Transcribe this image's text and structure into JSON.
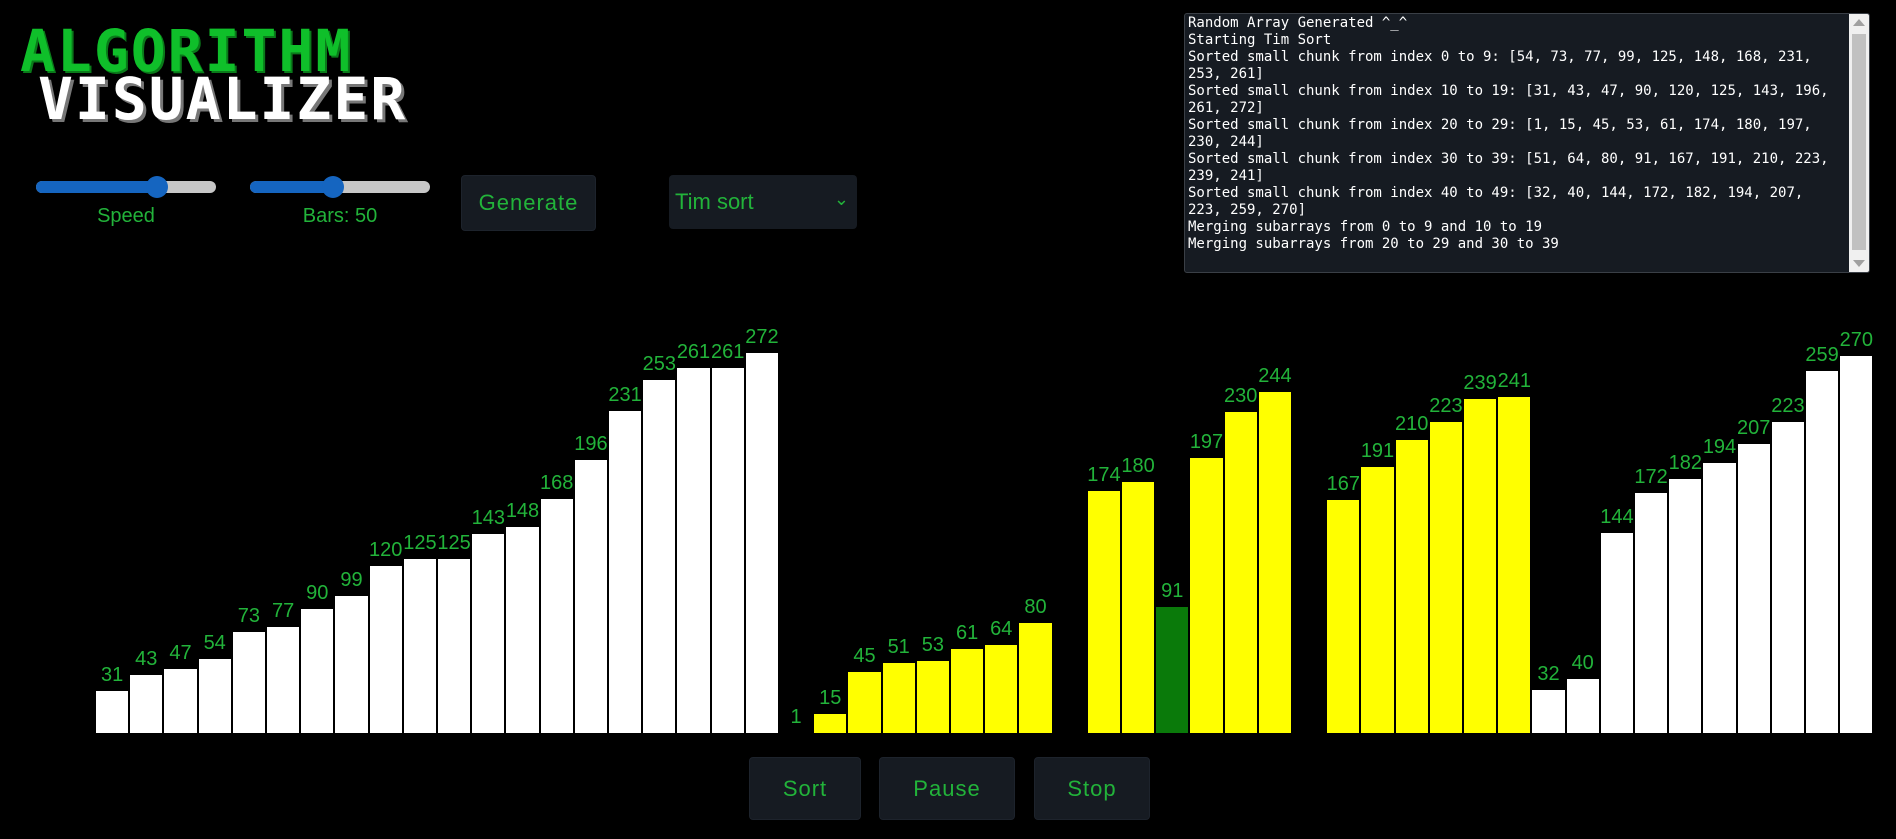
{
  "header": {
    "title_line1": "ALGORITHM",
    "title_line2": "VISUALIZER"
  },
  "controls": {
    "speed": {
      "label": "Speed",
      "value_fraction": 0.67
    },
    "bars": {
      "label": "Bars: 50",
      "value_fraction": 0.46
    },
    "generate_label": "Generate",
    "algorithm_selected": "Tim sort"
  },
  "log": {
    "lines": [
      "Random Array Generated ^_^",
      "Starting Tim Sort",
      "Sorted small chunk from index 0 to 9: [54, 73, 77, 99, 125, 148, 168, 231, 253, 261]",
      "Sorted small chunk from index 10 to 19: [31, 43, 47, 90, 120, 125, 143, 196, 261, 272]",
      "Sorted small chunk from index 20 to 29: [1, 15, 45, 53, 61, 174, 180, 197, 230, 244]",
      "Sorted small chunk from index 30 to 39: [51, 64, 80, 91, 167, 191, 210, 223, 239, 241]",
      "Sorted small chunk from index 40 to 49: [32, 40, 144, 172, 182, 194, 207, 223, 259, 270]",
      "Merging subarrays from 0 to 9 and 10 to 19",
      "Merging subarrays from 20 to 29 and 30 to 39"
    ]
  },
  "colors": {
    "default": "#ffffff",
    "active": "#ffff00",
    "highlight": "#0a7a0a",
    "label": "#22b33a"
  },
  "bars": [
    {
      "value": 31,
      "state": "default"
    },
    {
      "value": 43,
      "state": "default"
    },
    {
      "value": 47,
      "state": "default"
    },
    {
      "value": 54,
      "state": "default"
    },
    {
      "value": 73,
      "state": "default"
    },
    {
      "value": 77,
      "state": "default"
    },
    {
      "value": 90,
      "state": "default"
    },
    {
      "value": 99,
      "state": "default"
    },
    {
      "value": 120,
      "state": "default"
    },
    {
      "value": 125,
      "state": "default"
    },
    {
      "value": 125,
      "state": "default"
    },
    {
      "value": 143,
      "state": "default"
    },
    {
      "value": 148,
      "state": "default"
    },
    {
      "value": 168,
      "state": "default"
    },
    {
      "value": 196,
      "state": "default"
    },
    {
      "value": 231,
      "state": "default"
    },
    {
      "value": 253,
      "state": "default"
    },
    {
      "value": 261,
      "state": "default"
    },
    {
      "value": 261,
      "state": "default"
    },
    {
      "value": 272,
      "state": "default"
    },
    {
      "value": 1,
      "state": "active"
    },
    {
      "value": 15,
      "state": "active"
    },
    {
      "value": 45,
      "state": "active"
    },
    {
      "value": 51,
      "state": "active"
    },
    {
      "value": 53,
      "state": "active"
    },
    {
      "value": 61,
      "state": "active"
    },
    {
      "value": 64,
      "state": "active"
    },
    {
      "value": 80,
      "state": "active"
    },
    {
      "value": null,
      "state": "empty"
    },
    {
      "value": 174,
      "state": "active"
    },
    {
      "value": 180,
      "state": "active"
    },
    {
      "value": 91,
      "state": "highlight"
    },
    {
      "value": 197,
      "state": "active"
    },
    {
      "value": 230,
      "state": "active"
    },
    {
      "value": 244,
      "state": "active"
    },
    {
      "value": null,
      "state": "empty"
    },
    {
      "value": 167,
      "state": "active"
    },
    {
      "value": 191,
      "state": "active"
    },
    {
      "value": 210,
      "state": "active"
    },
    {
      "value": 223,
      "state": "active"
    },
    {
      "value": 239,
      "state": "active"
    },
    {
      "value": 241,
      "state": "active"
    },
    {
      "value": 32,
      "state": "default"
    },
    {
      "value": 40,
      "state": "default"
    },
    {
      "value": 144,
      "state": "default"
    },
    {
      "value": 172,
      "state": "default"
    },
    {
      "value": 182,
      "state": "default"
    },
    {
      "value": 194,
      "state": "default"
    },
    {
      "value": 207,
      "state": "default"
    },
    {
      "value": 223,
      "state": "default"
    },
    {
      "value": 259,
      "state": "default"
    },
    {
      "value": 270,
      "state": "default"
    }
  ],
  "actions": {
    "sort": "Sort",
    "pause": "Pause",
    "stop": "Stop"
  }
}
